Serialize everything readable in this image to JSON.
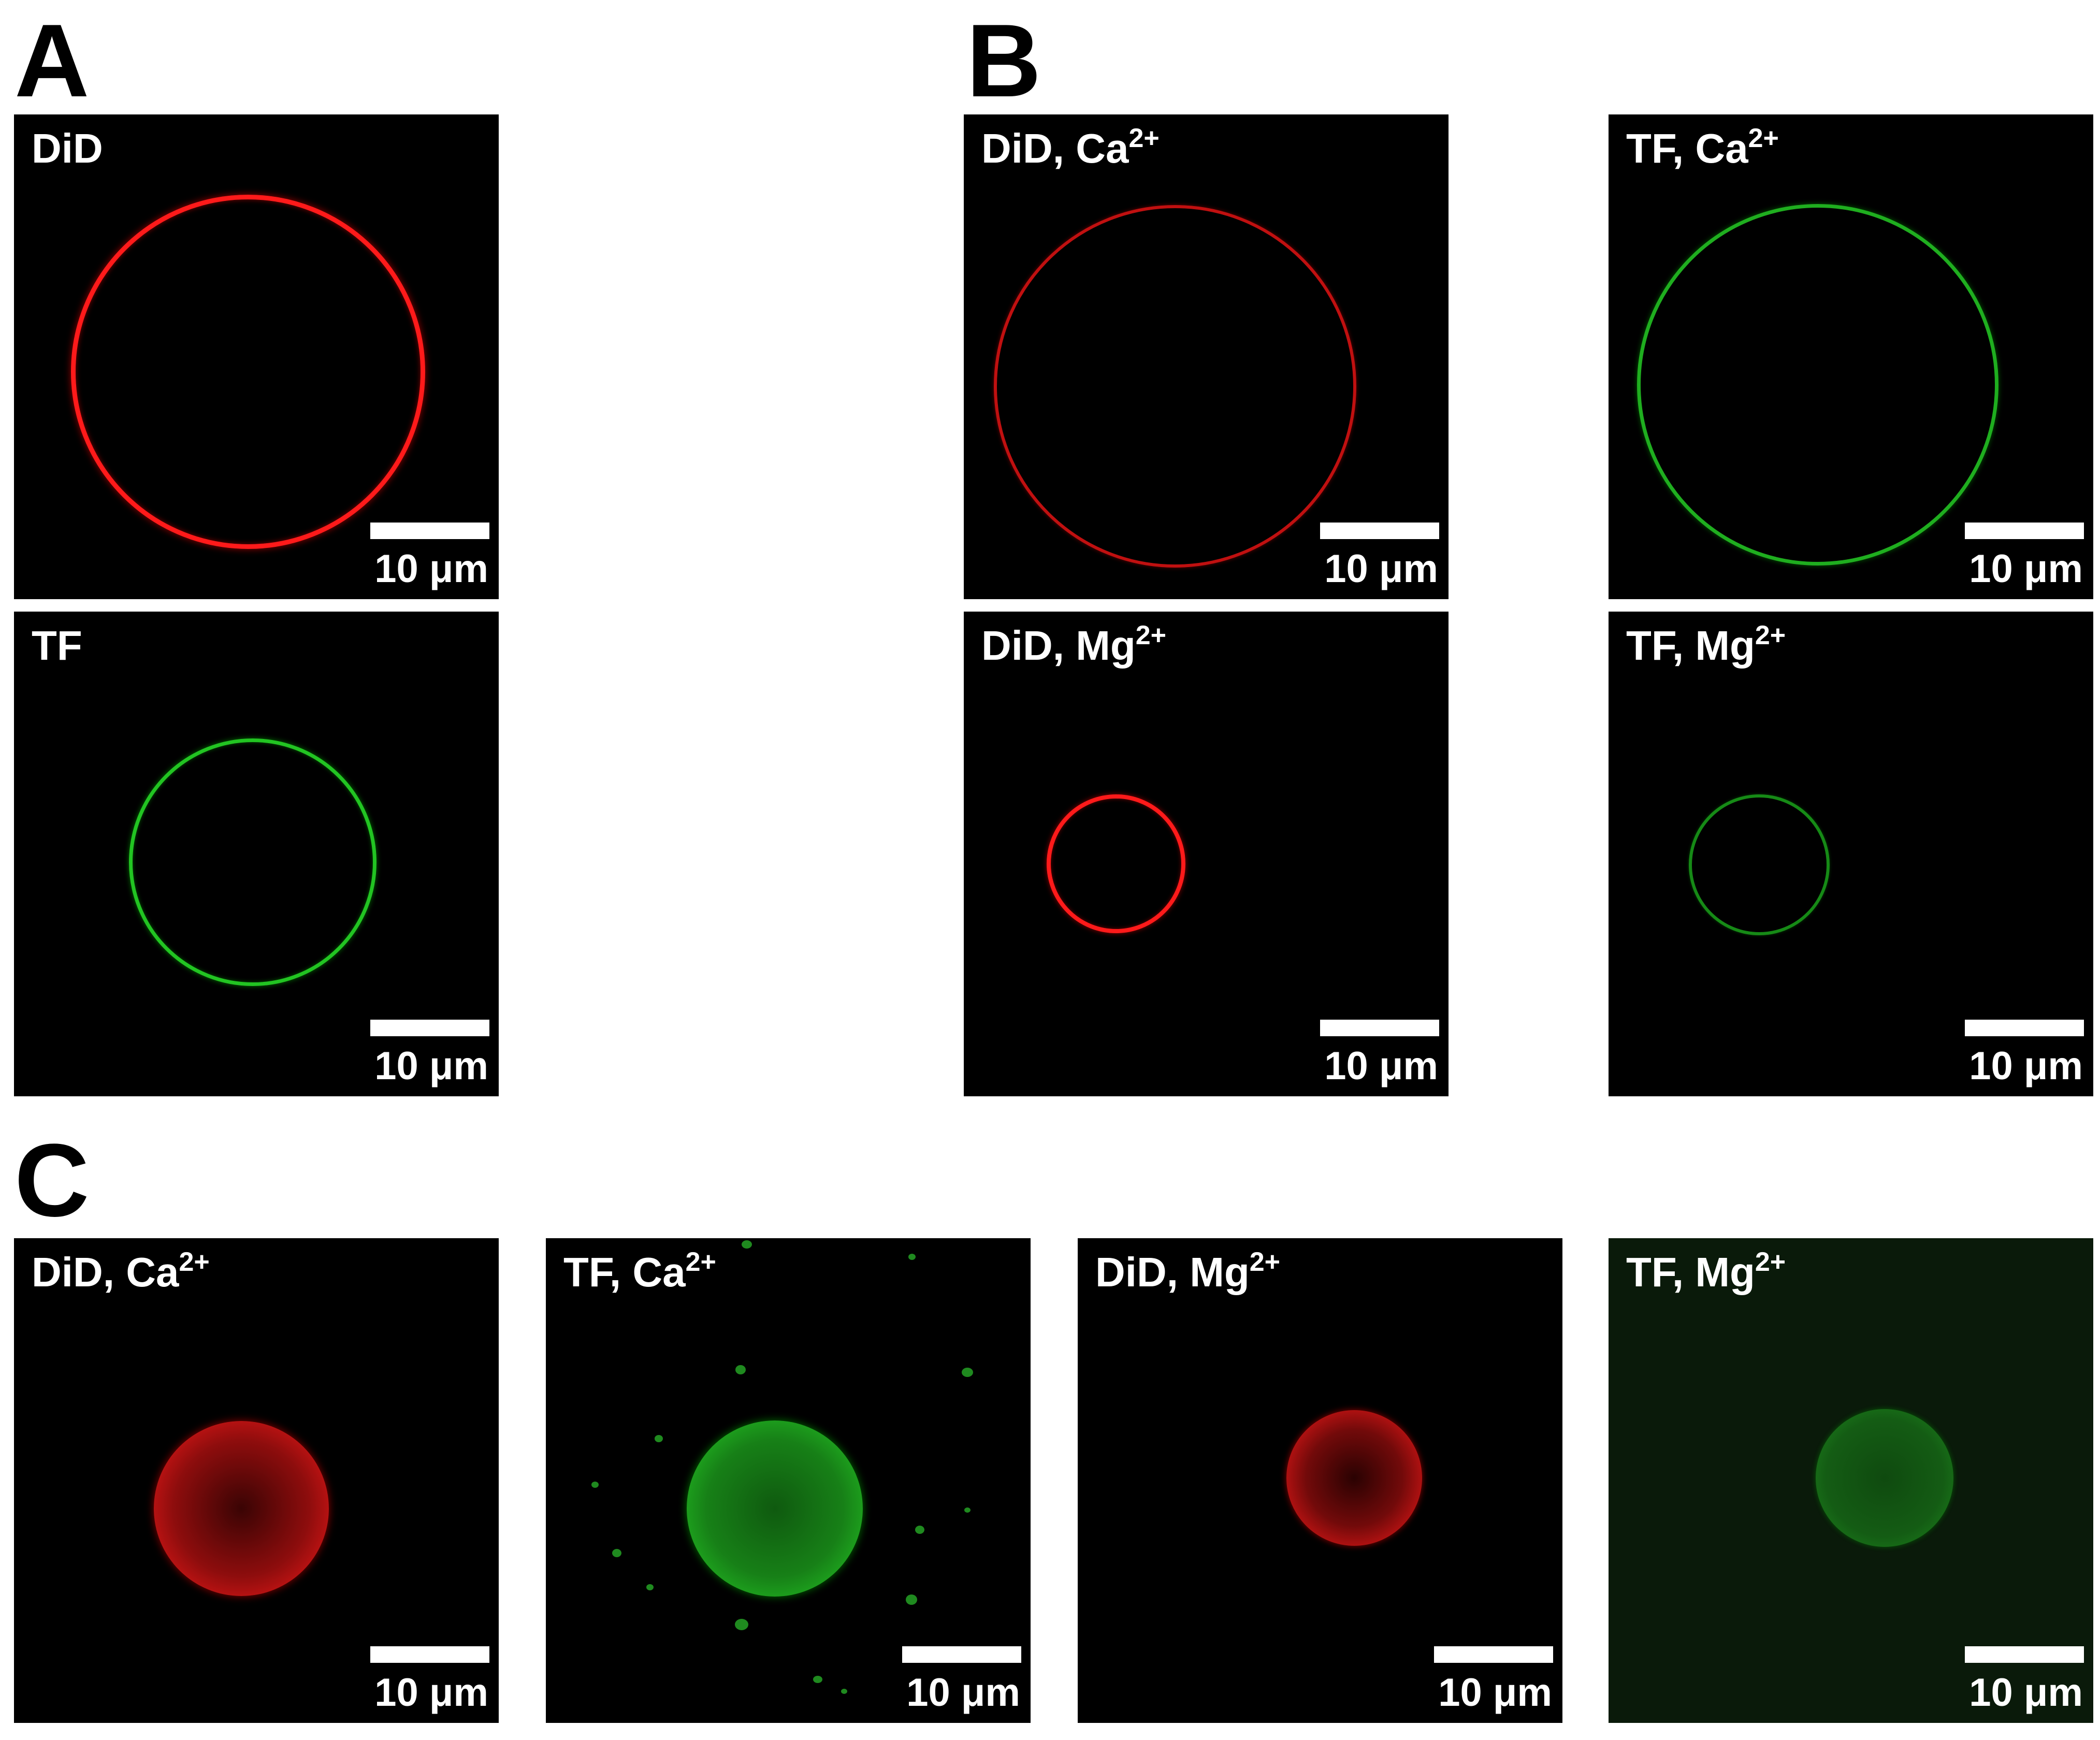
{
  "sections": {
    "a": "A",
    "b": "B",
    "c": "C"
  },
  "scale_bar_text": "10 μm",
  "panels": [
    {
      "text": "DiD",
      "ion": "",
      "sep": ""
    },
    {
      "text": "TF",
      "ion": "",
      "sep": ""
    },
    {
      "text": "DiD",
      "ion": "Ca",
      "sep": ", "
    },
    {
      "text": "TF",
      "ion": "Ca",
      "sep": ", "
    },
    {
      "text": "DiD",
      "ion": "Mg",
      "sep": ", "
    },
    {
      "text": "TF",
      "ion": "Mg",
      "sep": ", "
    },
    {
      "text": "DiD",
      "ion": "Ca",
      "sep": ", "
    },
    {
      "text": "TF",
      "ion": "Ca",
      "sep": ", "
    },
    {
      "text": "DiD",
      "ion": "Mg",
      "sep": ", "
    },
    {
      "text": "TF",
      "ion": "Mg",
      "sep": ", "
    }
  ],
  "charge": "2+",
  "colors": {
    "did_red": "#ff1a1a",
    "tf_green": "#22c422",
    "background": "#000000"
  }
}
